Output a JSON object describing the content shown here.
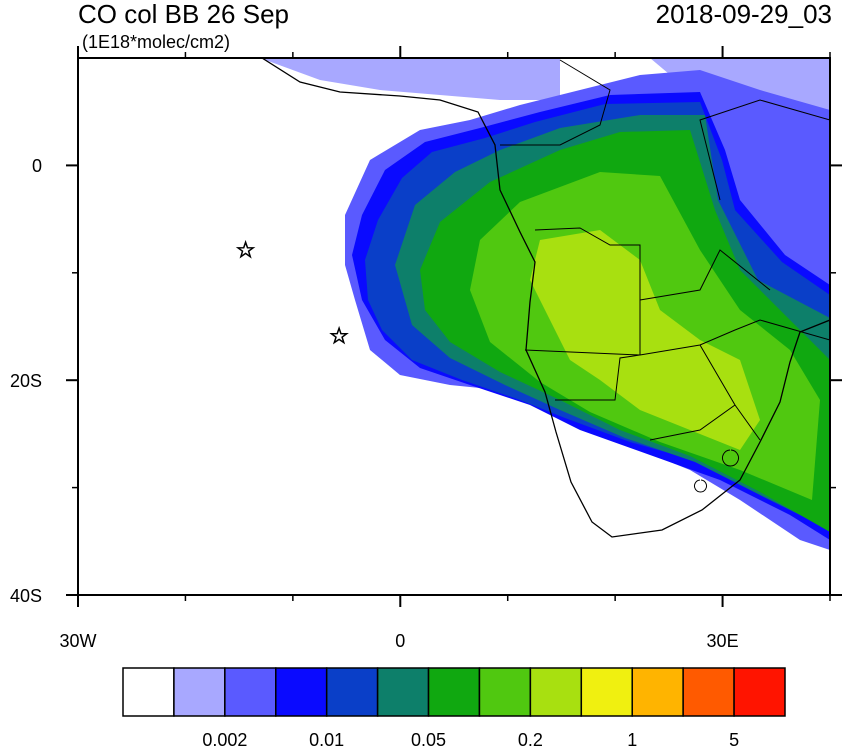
{
  "title": "CO col BB 26 Sep",
  "units": "(1E18*molec/cm2)",
  "timestamp": "2018-09-29_03",
  "map": {
    "xlim": [
      -30,
      40
    ],
    "ylim": [
      -40,
      10
    ],
    "xticks": [
      {
        "value": -30,
        "label": "30W"
      },
      0,
      {
        "value": 30,
        "label": "30E"
      }
    ],
    "yticks": [
      0,
      {
        "value": -20,
        "label": "20S"
      },
      {
        "value": -40,
        "label": "40S"
      }
    ],
    "xminor": [
      -20,
      -10,
      10,
      20,
      40
    ],
    "yminor": [
      -10,
      -30
    ],
    "markers": [
      {
        "lon": -14.4,
        "lat": -7.9
      },
      {
        "lon": -5.7,
        "lat": -15.9
      }
    ]
  },
  "colorbar": {
    "colors": [
      "#ffffff",
      "#a8a8ff",
      "#5a5aff",
      "#0a0aff",
      "#0a3fc8",
      "#0d7f6a",
      "#10a810",
      "#50c810",
      "#a8e010",
      "#f0f010",
      "#ffb400",
      "#ff5a00",
      "#ff1400"
    ],
    "labels": [
      0.002,
      0.01,
      0.05,
      0.2,
      1,
      5
    ]
  }
}
